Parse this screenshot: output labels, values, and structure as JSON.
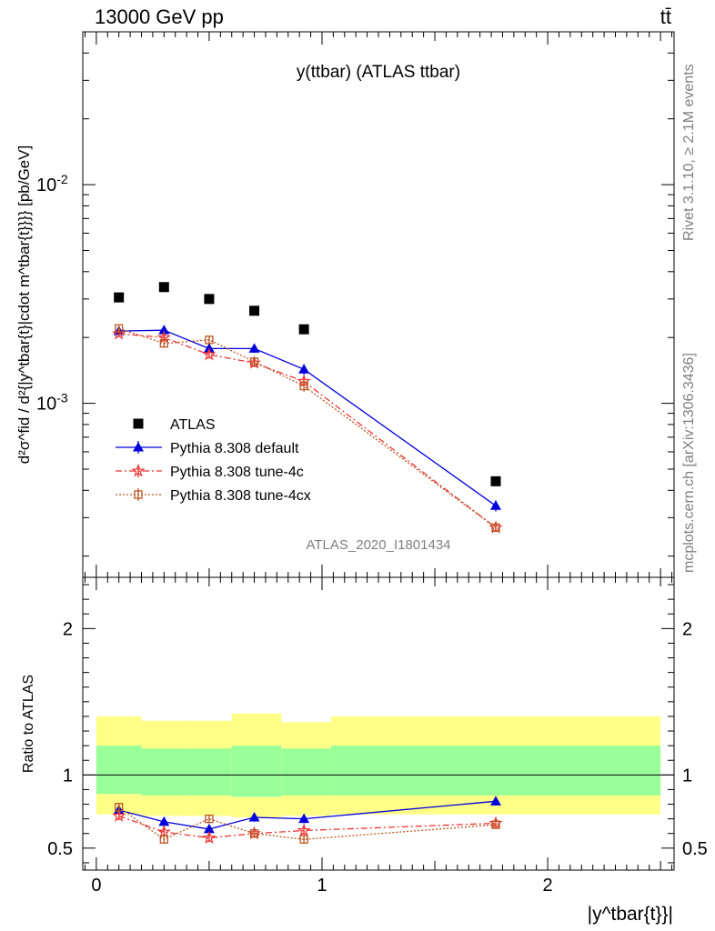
{
  "header": {
    "energy": "13000 GeV pp",
    "process": "tt̄"
  },
  "side_text": {
    "rivet": "Rivet 3.1.10, ≥ 2.1M events",
    "mcplots": "mcplots.cern.ch [arXiv:1306.3436]"
  },
  "watermark": "ATLAS_2020_I1801434",
  "colors": {
    "atlas": "#000000",
    "default": "#0000dd",
    "tune4c": "#ee3333",
    "tune4cx": "#bb5522",
    "band_inner": "#99ff99",
    "band_outer": "#ffff88"
  },
  "chart_data": [
    {
      "type": "scatter",
      "title": "y(ttbar) (ATLAS ttbar)",
      "ylabel": "d²σ^fid / d²{|y^tbar{t}|cdot m^tbar{t}}}} [pb/GeV]",
      "xlabel": "|y^tbar{t}}|",
      "yscale": "log",
      "ylim": [
        0.00016,
        0.05
      ],
      "xlim": [
        -0.06,
        2.56
      ],
      "yticks": [
        {
          "value": 0.01,
          "label": "10^-2"
        },
        {
          "value": 0.001,
          "label": "10^-3"
        }
      ],
      "legend": {
        "placement": "lower-left"
      },
      "series": [
        {
          "name": "ATLAS",
          "marker": "square",
          "x": [
            0.1,
            0.3,
            0.5,
            0.7,
            0.92,
            1.77
          ],
          "y": [
            0.00305,
            0.0034,
            0.003,
            0.00265,
            0.00218,
            0.00044
          ]
        },
        {
          "name": "Pythia 8.308 default",
          "marker": "triangle",
          "line": "solid",
          "x": [
            0.1,
            0.3,
            0.5,
            0.7,
            0.92,
            1.77
          ],
          "y": [
            0.00214,
            0.00216,
            0.00178,
            0.00178,
            0.00143,
            0.00034
          ],
          "err": [
            7e-05,
            9e-05,
            8e-05,
            8e-05,
            8e-05,
            2e-05
          ]
        },
        {
          "name": "Pythia 8.308 tune-4c",
          "marker": "star",
          "line": "dashdot",
          "x": [
            0.1,
            0.3,
            0.5,
            0.7,
            0.92,
            1.77
          ],
          "y": [
            0.00208,
            0.002,
            0.00167,
            0.00153,
            0.00126,
            0.00027
          ],
          "err": [
            7e-05,
            8e-05,
            7e-05,
            7e-05,
            7e-05,
            1e-05
          ]
        },
        {
          "name": "Pythia 8.308 tune-4cx",
          "marker": "open-square",
          "line": "dotted",
          "x": [
            0.1,
            0.3,
            0.5,
            0.7,
            0.92,
            1.77
          ],
          "y": [
            0.0022,
            0.00188,
            0.00195,
            0.00155,
            0.0012,
            0.00027
          ],
          "err": [
            7e-05,
            8e-05,
            8e-05,
            7e-05,
            7e-05,
            1e-05
          ]
        }
      ]
    },
    {
      "type": "scatter",
      "ylabel": "Ratio to ATLAS",
      "xlabel": "|y^tbar{t}}|",
      "ylim": [
        0.35,
        2.35
      ],
      "xlim": [
        -0.06,
        2.56
      ],
      "yticks": [
        0.5,
        1,
        2
      ],
      "xticks": [
        0,
        1,
        2
      ],
      "bands": {
        "edges": [
          0,
          0.2,
          0.4,
          0.6,
          0.82,
          1.04,
          2.5
        ],
        "inner_lo": [
          0.87,
          0.86,
          0.86,
          0.85,
          0.86,
          0.86
        ],
        "inner_hi": [
          1.2,
          1.18,
          1.18,
          1.2,
          1.18,
          1.2
        ],
        "outer_lo": [
          0.73,
          0.72,
          0.72,
          0.71,
          0.72,
          0.73
        ],
        "outer_hi": [
          1.4,
          1.37,
          1.37,
          1.42,
          1.36,
          1.4
        ]
      },
      "series": [
        {
          "name": "Pythia 8.308 default",
          "x": [
            0.1,
            0.3,
            0.5,
            0.7,
            0.92,
            1.77
          ],
          "y": [
            0.76,
            0.68,
            0.63,
            0.71,
            0.7,
            0.82
          ],
          "err": [
            0.03,
            0.03,
            0.03,
            0.03,
            0.03,
            0.03
          ]
        },
        {
          "name": "Pythia 8.308 tune-4c",
          "x": [
            0.1,
            0.3,
            0.5,
            0.7,
            0.92,
            1.77
          ],
          "y": [
            0.72,
            0.61,
            0.57,
            0.6,
            0.62,
            0.67
          ],
          "err": [
            0.03,
            0.03,
            0.03,
            0.03,
            0.03,
            0.03
          ]
        },
        {
          "name": "Pythia 8.308 tune-4cx",
          "x": [
            0.1,
            0.3,
            0.5,
            0.7,
            0.92,
            1.77
          ],
          "y": [
            0.78,
            0.56,
            0.7,
            0.6,
            0.56,
            0.66
          ],
          "err": [
            0.03,
            0.03,
            0.03,
            0.03,
            0.03,
            0.03
          ]
        }
      ]
    }
  ]
}
